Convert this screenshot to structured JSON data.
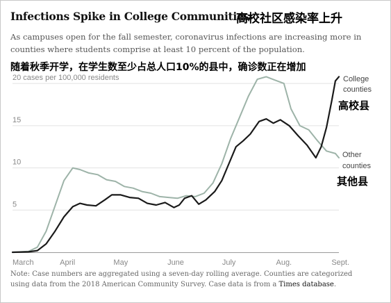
{
  "header": {
    "title": "Infections Spike in College Communities",
    "title_cn": "高校社区感染率上升",
    "subtitle_line1": "As campuses open for the fall semester, coronavirus infections are increasing more in",
    "subtitle_line2": "counties where students comprise at least 10 percent of the population.",
    "subtitle_cn": "随着秋季开学，在学生数至少占总人口10%的县中，确诊数正在增加"
  },
  "footer": {
    "note_line1": "Note: Case numbers are aggregated using a seven-day rolling average. Counties are categorized",
    "note_line2_prefix": "using data from the 2018 American Community Survey. Case data is from a ",
    "note_link": "Times database",
    "note_line2_suffix": "."
  },
  "colors": {
    "college": "#1a1a1a",
    "other": "#9db3a8",
    "grid": "#e2e2e2",
    "axis": "#999999"
  },
  "chart_data": {
    "type": "line",
    "title": "Infections Spike in College Communities",
    "ylabel": "20 cases per 100,000 residents",
    "ylim": [
      0,
      21
    ],
    "yticks": [
      {
        "value": 5,
        "label": "5"
      },
      {
        "value": 10,
        "label": "10"
      },
      {
        "value": 15,
        "label": "15"
      },
      {
        "value": 20,
        "label": "20 cases per 100,000 residents"
      }
    ],
    "xlim": [
      "2020-03-01",
      "2020-09-01"
    ],
    "xticks": [
      {
        "date": "2020-03-01",
        "label": "March"
      },
      {
        "date": "2020-04-01",
        "label": "April"
      },
      {
        "date": "2020-05-01",
        "label": "May"
      },
      {
        "date": "2020-06-01",
        "label": "June"
      },
      {
        "date": "2020-07-01",
        "label": "July"
      },
      {
        "date": "2020-08-01",
        "label": "Aug."
      },
      {
        "date": "2020-09-01",
        "label": "Sept."
      }
    ],
    "grid": true,
    "series": [
      {
        "name": "College counties",
        "name_line1": "College",
        "name_line2": "counties",
        "name_cn": "高校县",
        "color": "#1a1a1a",
        "points": [
          [
            "2020-03-01",
            0
          ],
          [
            "2020-03-10",
            0.05
          ],
          [
            "2020-03-15",
            0.2
          ],
          [
            "2020-03-20",
            1.0
          ],
          [
            "2020-03-25",
            2.5
          ],
          [
            "2020-03-30",
            4.2
          ],
          [
            "2020-04-04",
            5.4
          ],
          [
            "2020-04-08",
            5.8
          ],
          [
            "2020-04-12",
            5.6
          ],
          [
            "2020-04-17",
            5.5
          ],
          [
            "2020-04-22",
            6.2
          ],
          [
            "2020-04-26",
            6.8
          ],
          [
            "2020-05-01",
            6.8
          ],
          [
            "2020-05-06",
            6.5
          ],
          [
            "2020-05-11",
            6.4
          ],
          [
            "2020-05-16",
            5.8
          ],
          [
            "2020-05-21",
            5.6
          ],
          [
            "2020-05-26",
            5.9
          ],
          [
            "2020-05-31",
            5.3
          ],
          [
            "2020-06-03",
            5.6
          ],
          [
            "2020-06-06",
            6.4
          ],
          [
            "2020-06-10",
            6.7
          ],
          [
            "2020-06-14",
            5.7
          ],
          [
            "2020-06-18",
            6.2
          ],
          [
            "2020-06-23",
            7.2
          ],
          [
            "2020-06-27",
            8.5
          ],
          [
            "2020-07-01",
            10.5
          ],
          [
            "2020-07-05",
            12.5
          ],
          [
            "2020-07-09",
            13.2
          ],
          [
            "2020-07-13",
            14.0
          ],
          [
            "2020-07-18",
            15.5
          ],
          [
            "2020-07-22",
            15.8
          ],
          [
            "2020-07-26",
            15.3
          ],
          [
            "2020-07-30",
            15.7
          ],
          [
            "2020-08-04",
            15.0
          ],
          [
            "2020-08-09",
            13.8
          ],
          [
            "2020-08-14",
            12.7
          ],
          [
            "2020-08-19",
            11.2
          ],
          [
            "2020-08-22",
            12.5
          ],
          [
            "2020-08-25",
            14.8
          ],
          [
            "2020-08-28",
            18.0
          ],
          [
            "2020-08-30",
            20.3
          ],
          [
            "2020-09-01",
            20.8
          ]
        ]
      },
      {
        "name": "Other counties",
        "name_line1": "Other",
        "name_line2": "counties",
        "name_cn": "其他县",
        "color": "#9db3a8",
        "points": [
          [
            "2020-03-01",
            0
          ],
          [
            "2020-03-10",
            0.1
          ],
          [
            "2020-03-15",
            0.6
          ],
          [
            "2020-03-20",
            2.5
          ],
          [
            "2020-03-25",
            5.5
          ],
          [
            "2020-03-30",
            8.5
          ],
          [
            "2020-04-04",
            10.0
          ],
          [
            "2020-04-08",
            9.8
          ],
          [
            "2020-04-13",
            9.4
          ],
          [
            "2020-04-18",
            9.2
          ],
          [
            "2020-04-23",
            8.6
          ],
          [
            "2020-04-28",
            8.4
          ],
          [
            "2020-05-03",
            7.8
          ],
          [
            "2020-05-08",
            7.6
          ],
          [
            "2020-05-13",
            7.2
          ],
          [
            "2020-05-18",
            7.0
          ],
          [
            "2020-05-23",
            6.6
          ],
          [
            "2020-05-28",
            6.5
          ],
          [
            "2020-06-02",
            6.4
          ],
          [
            "2020-06-07",
            6.7
          ],
          [
            "2020-06-12",
            6.6
          ],
          [
            "2020-06-17",
            7.0
          ],
          [
            "2020-06-22",
            8.2
          ],
          [
            "2020-06-27",
            10.5
          ],
          [
            "2020-07-02",
            13.5
          ],
          [
            "2020-07-07",
            16.0
          ],
          [
            "2020-07-12",
            18.5
          ],
          [
            "2020-07-17",
            20.5
          ],
          [
            "2020-07-22",
            20.8
          ],
          [
            "2020-07-27",
            20.4
          ],
          [
            "2020-08-01",
            20.0
          ],
          [
            "2020-08-05",
            17.0
          ],
          [
            "2020-08-10",
            15.0
          ],
          [
            "2020-08-15",
            14.5
          ],
          [
            "2020-08-20",
            13.2
          ],
          [
            "2020-08-25",
            12.0
          ],
          [
            "2020-08-30",
            11.7
          ],
          [
            "2020-09-01",
            11.2
          ]
        ]
      }
    ]
  }
}
